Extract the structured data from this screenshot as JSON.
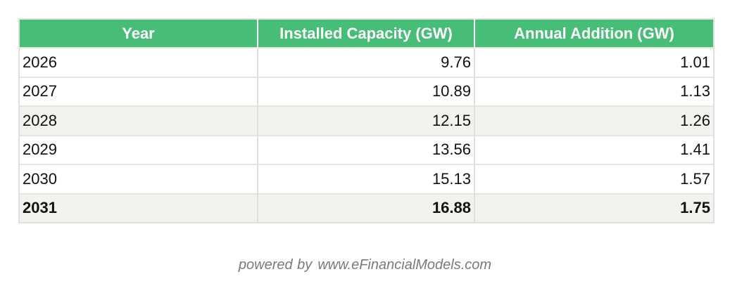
{
  "table": {
    "headers": [
      "Year",
      "Installed Capacity (GW)",
      "Annual Addition (GW)"
    ],
    "rows": [
      {
        "year": "2026",
        "installed": "9.76",
        "addition": "1.01"
      },
      {
        "year": "2027",
        "installed": "10.89",
        "addition": "1.13"
      },
      {
        "year": "2028",
        "installed": "12.15",
        "addition": "1.26"
      },
      {
        "year": "2029",
        "installed": "13.56",
        "addition": "1.41"
      },
      {
        "year": "2030",
        "installed": "15.13",
        "addition": "1.57"
      },
      {
        "year": "2031",
        "installed": "16.88",
        "addition": "1.75"
      }
    ]
  },
  "footer": {
    "prefix": "powered by",
    "site": "www.eFinancialModels.com"
  },
  "colors": {
    "header_bg": "#48bd78",
    "alt_row_bg": "#f3f2ee"
  }
}
